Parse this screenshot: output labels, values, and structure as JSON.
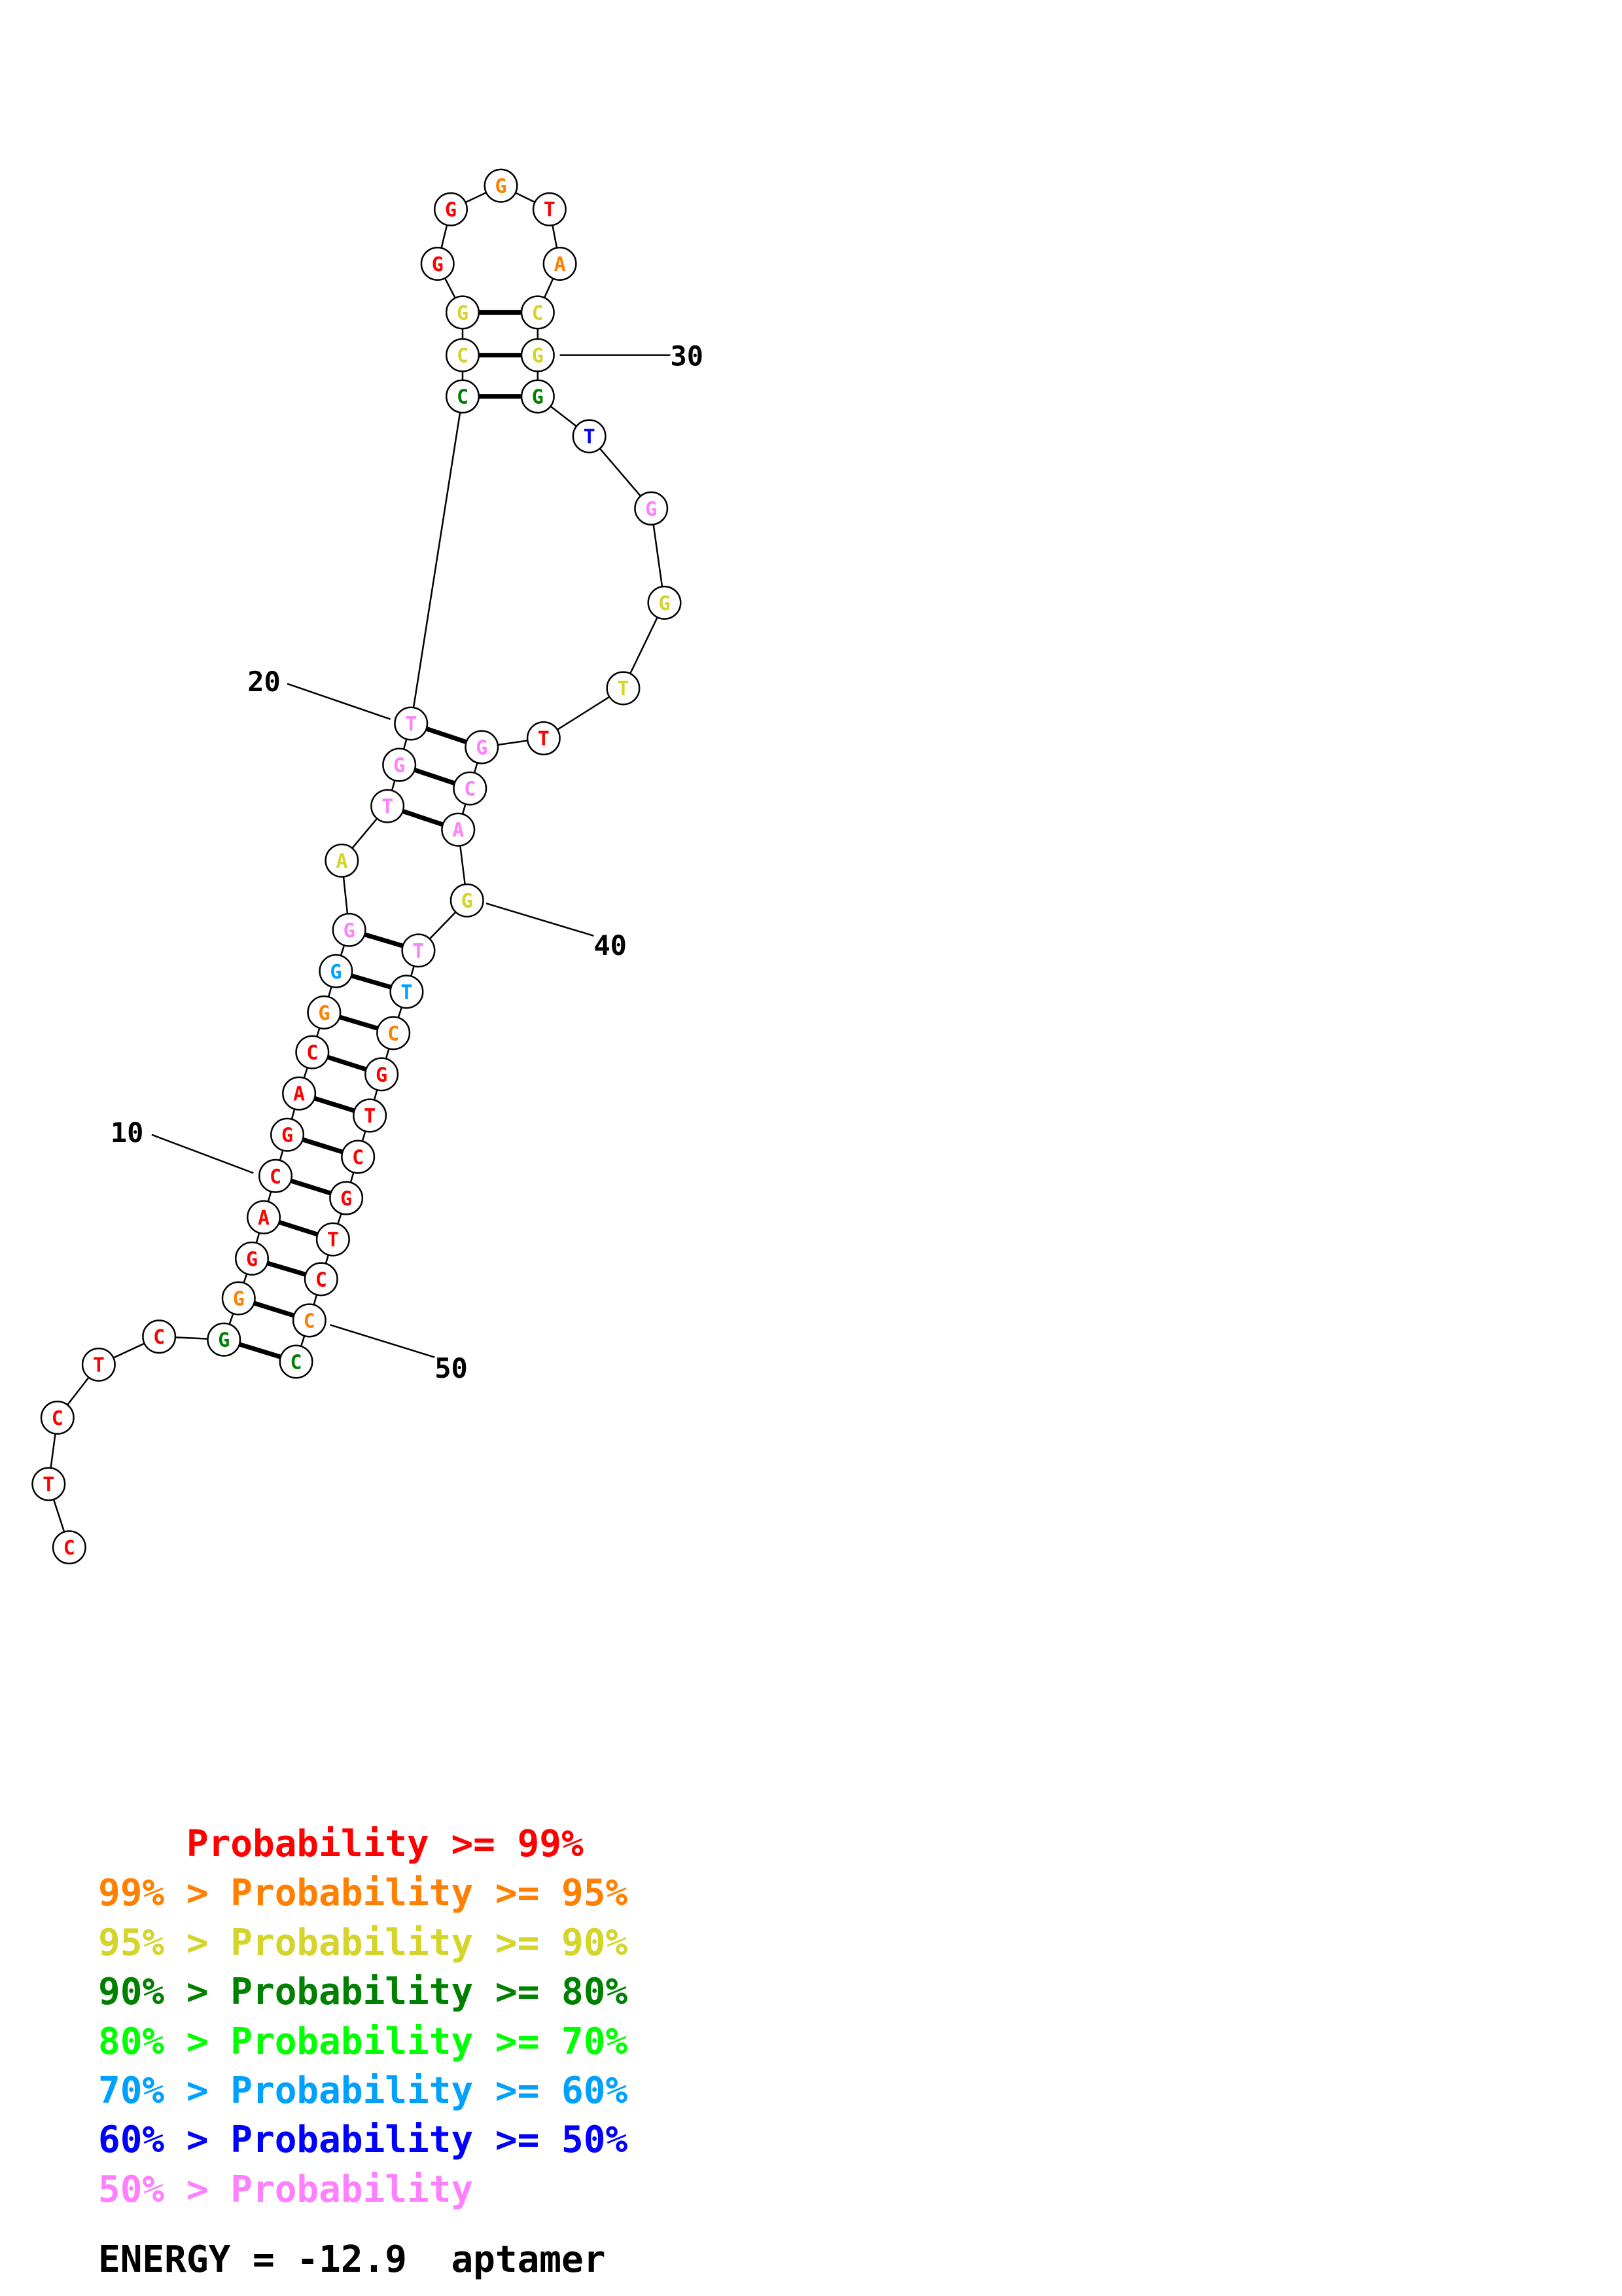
{
  "colors": {
    "p99": "#ff0000",
    "p95": "#ff8000",
    "p90": "#d4d42a",
    "p80": "#008000",
    "p70": "#00ff00",
    "p60": "#00a0ff",
    "p50": "#0000ff",
    "plow": "#ff80ff"
  },
  "sequence": [
    {
      "base": "C",
      "prob": "p99"
    },
    {
      "base": "T",
      "prob": "p99"
    },
    {
      "base": "C",
      "prob": "p99"
    },
    {
      "base": "T",
      "prob": "p99"
    },
    {
      "base": "C",
      "prob": "p99"
    },
    {
      "base": "G",
      "prob": "p80"
    },
    {
      "base": "G",
      "prob": "p95"
    },
    {
      "base": "G",
      "prob": "p99"
    },
    {
      "base": "A",
      "prob": "p99"
    },
    {
      "base": "C",
      "prob": "p99"
    },
    {
      "base": "G",
      "prob": "p99"
    },
    {
      "base": "A",
      "prob": "p99"
    },
    {
      "base": "C",
      "prob": "p99"
    },
    {
      "base": "G",
      "prob": "p95"
    },
    {
      "base": "G",
      "prob": "p60"
    },
    {
      "base": "G",
      "prob": "plow"
    },
    {
      "base": "A",
      "prob": "p90"
    },
    {
      "base": "T",
      "prob": "plow"
    },
    {
      "base": "G",
      "prob": "plow"
    },
    {
      "base": "T",
      "prob": "plow"
    },
    {
      "base": "C",
      "prob": "p80"
    },
    {
      "base": "C",
      "prob": "p90"
    },
    {
      "base": "G",
      "prob": "p90"
    },
    {
      "base": "G",
      "prob": "p99"
    },
    {
      "base": "G",
      "prob": "p99"
    },
    {
      "base": "G",
      "prob": "p95"
    },
    {
      "base": "T",
      "prob": "p99"
    },
    {
      "base": "A",
      "prob": "p95"
    },
    {
      "base": "C",
      "prob": "p90"
    },
    {
      "base": "G",
      "prob": "p90"
    },
    {
      "base": "G",
      "prob": "p80"
    },
    {
      "base": "T",
      "prob": "p50"
    },
    {
      "base": "G",
      "prob": "plow"
    },
    {
      "base": "G",
      "prob": "p90"
    },
    {
      "base": "T",
      "prob": "p90"
    },
    {
      "base": "T",
      "prob": "p99"
    },
    {
      "base": "G",
      "prob": "plow"
    },
    {
      "base": "C",
      "prob": "plow"
    },
    {
      "base": "A",
      "prob": "plow"
    },
    {
      "base": "G",
      "prob": "p90"
    },
    {
      "base": "T",
      "prob": "plow"
    },
    {
      "base": "T",
      "prob": "p60"
    },
    {
      "base": "C",
      "prob": "p95"
    },
    {
      "base": "G",
      "prob": "p99"
    },
    {
      "base": "T",
      "prob": "p99"
    },
    {
      "base": "C",
      "prob": "p99"
    },
    {
      "base": "G",
      "prob": "p99"
    },
    {
      "base": "T",
      "prob": "p99"
    },
    {
      "base": "C",
      "prob": "p99"
    },
    {
      "base": "C",
      "prob": "p95"
    },
    {
      "base": "C",
      "prob": "p80"
    }
  ],
  "pairs": [
    [
      6,
      51
    ],
    [
      7,
      50
    ],
    [
      8,
      49
    ],
    [
      9,
      48
    ],
    [
      10,
      47
    ],
    [
      11,
      46
    ],
    [
      12,
      45
    ],
    [
      13,
      44
    ],
    [
      14,
      43
    ],
    [
      15,
      42
    ],
    [
      16,
      41
    ],
    [
      18,
      39
    ],
    [
      19,
      38
    ],
    [
      20,
      37
    ],
    [
      21,
      31
    ],
    [
      22,
      30
    ],
    [
      23,
      29
    ]
  ],
  "position_labels": [
    {
      "index": 10,
      "text": "10"
    },
    {
      "index": 20,
      "text": "20"
    },
    {
      "index": 30,
      "text": "30"
    },
    {
      "index": 40,
      "text": "40"
    },
    {
      "index": 50,
      "text": "50"
    }
  ],
  "legend": [
    {
      "prefix": "    ",
      "text": "Probability >= 99%",
      "color": "p99"
    },
    {
      "prefix": "",
      "text": "99% > Probability >= 95%",
      "color": "p95"
    },
    {
      "prefix": "",
      "text": "95% > Probability >= 90%",
      "color": "p90"
    },
    {
      "prefix": "",
      "text": "90% > Probability >= 80%",
      "color": "p80"
    },
    {
      "prefix": "",
      "text": "80% > Probability >= 70%",
      "color": "p70"
    },
    {
      "prefix": "",
      "text": "70% > Probability >= 60%",
      "color": "p60"
    },
    {
      "prefix": "",
      "text": "60% > Probability >= 50%",
      "color": "p50"
    },
    {
      "prefix": "",
      "text": "50% > Probability",
      "color": "plow"
    }
  ],
  "energy_text": "ENERGY = -12.9  aptamer"
}
